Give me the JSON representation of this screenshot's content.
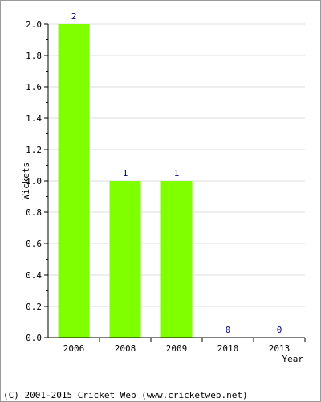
{
  "chart_data": {
    "type": "bar",
    "categories": [
      "2006",
      "2008",
      "2009",
      "2010",
      "2013"
    ],
    "values": [
      2,
      1,
      1,
      0,
      0
    ],
    "value_labels": [
      "2",
      "1",
      "1",
      "0",
      "0"
    ],
    "ylabel": "Wickets",
    "xlabel": "Year",
    "ylim": [
      0,
      2.0
    ],
    "yticks": [
      "0.0",
      "0.2",
      "0.4",
      "0.6",
      "0.8",
      "1.0",
      "1.2",
      "1.4",
      "1.6",
      "1.8",
      "2.0"
    ],
    "grid": true,
    "bar_color": "#80ff00",
    "grid_color": "#dddddd",
    "value_label_color": "#000080"
  },
  "footer": {
    "copyright": "(C) 2001-2015 Cricket Web (www.cricketweb.net)"
  }
}
